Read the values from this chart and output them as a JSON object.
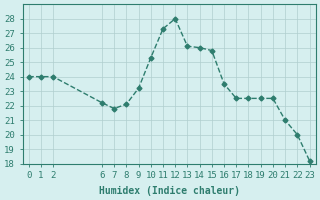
{
  "x": [
    0,
    1,
    2,
    6,
    7,
    8,
    9,
    10,
    11,
    12,
    13,
    14,
    15,
    16,
    17,
    18,
    19,
    20,
    21,
    22,
    23
  ],
  "y": [
    24.0,
    24.0,
    24.0,
    22.2,
    21.8,
    22.1,
    23.2,
    25.3,
    27.3,
    28.0,
    26.1,
    26.0,
    25.8,
    23.5,
    22.5,
    22.5,
    22.5,
    22.5,
    21.0,
    20.0,
    18.2
  ],
  "line_color": "#2e7d6e",
  "marker_color": "#2e7d6e",
  "bg_color": "#d6efef",
  "grid_color": "#b0cece",
  "xlabel": "Humidex (Indice chaleur)",
  "xlim": [
    -0.5,
    23.5
  ],
  "ylim": [
    18,
    29
  ],
  "yticks": [
    18,
    19,
    20,
    21,
    22,
    23,
    24,
    25,
    26,
    27,
    28
  ],
  "xticks": [
    0,
    1,
    2,
    6,
    7,
    8,
    9,
    10,
    11,
    12,
    13,
    14,
    15,
    16,
    17,
    18,
    19,
    20,
    21,
    22,
    23
  ],
  "label_fontsize": 7,
  "tick_fontsize": 6.5
}
